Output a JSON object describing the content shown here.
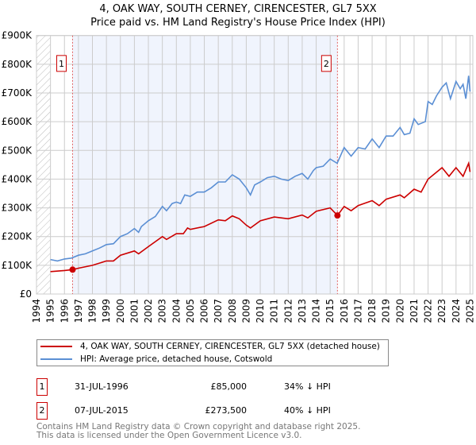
{
  "title": "4, OAK WAY, SOUTH CERNEY, CIRENCESTER, GL7 5XX",
  "subtitle": "Price paid vs. HM Land Registry's House Price Index (HPI)",
  "chart_data": {
    "type": "line",
    "title": "4, OAK WAY, SOUTH CERNEY, CIRENCESTER, GL7 5XX",
    "subtitle": "Price paid vs. HM Land Registry's House Price Index (HPI)",
    "xlim": [
      1994,
      2025.2
    ],
    "ylim": [
      0,
      900000
    ],
    "yticks": [
      0,
      100000,
      200000,
      300000,
      400000,
      500000,
      600000,
      700000,
      800000,
      900000
    ],
    "ytick_labels": [
      "£0",
      "£100K",
      "£200K",
      "£300K",
      "£400K",
      "£500K",
      "£600K",
      "£700K",
      "£800K",
      "£900K"
    ],
    "xticks": [
      "1994",
      "1995",
      "1996",
      "1997",
      "1998",
      "1999",
      "2000",
      "2001",
      "2002",
      "2003",
      "2004",
      "2005",
      "2006",
      "2007",
      "2008",
      "2009",
      "2010",
      "2011",
      "2012",
      "2013",
      "2014",
      "2015",
      "2016",
      "2017",
      "2018",
      "2019",
      "2020",
      "2021",
      "2022",
      "2023",
      "2024",
      "2025"
    ],
    "grid": true,
    "series": [
      {
        "name": "4, OAK WAY, SOUTH CERNEY, CIRENCESTER, GL7 5XX (detached house)",
        "color": "#cc0000",
        "x": [
          1995,
          1996,
          1996.58,
          1997,
          1998,
          1999,
          1999.5,
          2000,
          2001,
          2001.3,
          2002,
          2003,
          2003.3,
          2004,
          2004.5,
          2004.8,
          2005,
          2006,
          2007,
          2007.5,
          2008,
          2008.5,
          2009,
          2009.3,
          2010,
          2011,
          2012,
          2013,
          2013.4,
          2014,
          2015,
          2015.52,
          2016,
          2016.5,
          2017,
          2018,
          2018.5,
          2019,
          2020,
          2020.3,
          2021,
          2021.5,
          2022,
          2023,
          2023.5,
          2024,
          2024.5,
          2024.9,
          2025
        ],
        "y": [
          78000,
          82000,
          85000,
          90000,
          100000,
          115000,
          115000,
          135000,
          150000,
          140000,
          165000,
          200000,
          190000,
          210000,
          210000,
          230000,
          225000,
          235000,
          258000,
          255000,
          272000,
          262000,
          240000,
          230000,
          255000,
          268000,
          262000,
          275000,
          265000,
          288000,
          300000,
          273500,
          305000,
          290000,
          308000,
          325000,
          308000,
          330000,
          345000,
          335000,
          365000,
          355000,
          400000,
          440000,
          410000,
          440000,
          410000,
          455000,
          425000
        ]
      },
      {
        "name": "HPI: Average price, detached house, Cotswold",
        "color": "#5b8fd4",
        "x": [
          1995,
          1995.5,
          1996,
          1996.5,
          1997,
          1997.5,
          1998,
          1998.5,
          1999,
          1999.5,
          2000,
          2000.5,
          2001,
          2001.3,
          2001.5,
          2002,
          2002.5,
          2003,
          2003.3,
          2003.7,
          2004,
          2004.3,
          2004.6,
          2005,
          2005.5,
          2006,
          2006.5,
          2007,
          2007.5,
          2008,
          2008.5,
          2009,
          2009.3,
          2009.6,
          2010,
          2010.5,
          2011,
          2011.5,
          2012,
          2012.5,
          2013,
          2013.4,
          2013.8,
          2014,
          2014.5,
          2015,
          2015.5,
          2016,
          2016.5,
          2017,
          2017.5,
          2018,
          2018.5,
          2019,
          2019.5,
          2020,
          2020.3,
          2020.7,
          2021,
          2021.3,
          2021.8,
          2022,
          2022.3,
          2022.6,
          2023,
          2023.3,
          2023.6,
          2024,
          2024.3,
          2024.5,
          2024.7,
          2024.9,
          2025
        ],
        "y": [
          120000,
          115000,
          122000,
          125000,
          135000,
          140000,
          150000,
          160000,
          172000,
          175000,
          200000,
          210000,
          228000,
          215000,
          235000,
          255000,
          270000,
          305000,
          290000,
          315000,
          320000,
          315000,
          345000,
          340000,
          355000,
          355000,
          370000,
          390000,
          390000,
          415000,
          400000,
          370000,
          345000,
          380000,
          390000,
          405000,
          410000,
          400000,
          395000,
          410000,
          420000,
          400000,
          430000,
          440000,
          445000,
          470000,
          455000,
          510000,
          480000,
          510000,
          505000,
          540000,
          510000,
          550000,
          550000,
          580000,
          555000,
          560000,
          610000,
          590000,
          600000,
          670000,
          660000,
          690000,
          720000,
          735000,
          680000,
          740000,
          715000,
          730000,
          680000,
          760000,
          705000
        ]
      }
    ],
    "sales": [
      {
        "label": "1",
        "x": 1996.58,
        "y": 85000
      },
      {
        "label": "2",
        "x": 2015.52,
        "y": 273500
      }
    ],
    "legend_position": "bottom"
  },
  "legend": [
    {
      "label": "4, OAK WAY, SOUTH CERNEY, CIRENCESTER, GL7 5XX (detached house)",
      "color": "#cc0000"
    },
    {
      "label": "HPI: Average price, detached house, Cotswold",
      "color": "#5b8fd4"
    }
  ],
  "transactions": [
    {
      "num": "1",
      "date": "31-JUL-1996",
      "price": "£85,000",
      "hpi": "34% ↓ HPI"
    },
    {
      "num": "2",
      "date": "07-JUL-2015",
      "price": "£273,500",
      "hpi": "40% ↓ HPI"
    }
  ],
  "footer": {
    "line1": "Contains HM Land Registry data © Crown copyright and database right 2025.",
    "line2": "This data is licensed under the Open Government Licence v3.0."
  }
}
